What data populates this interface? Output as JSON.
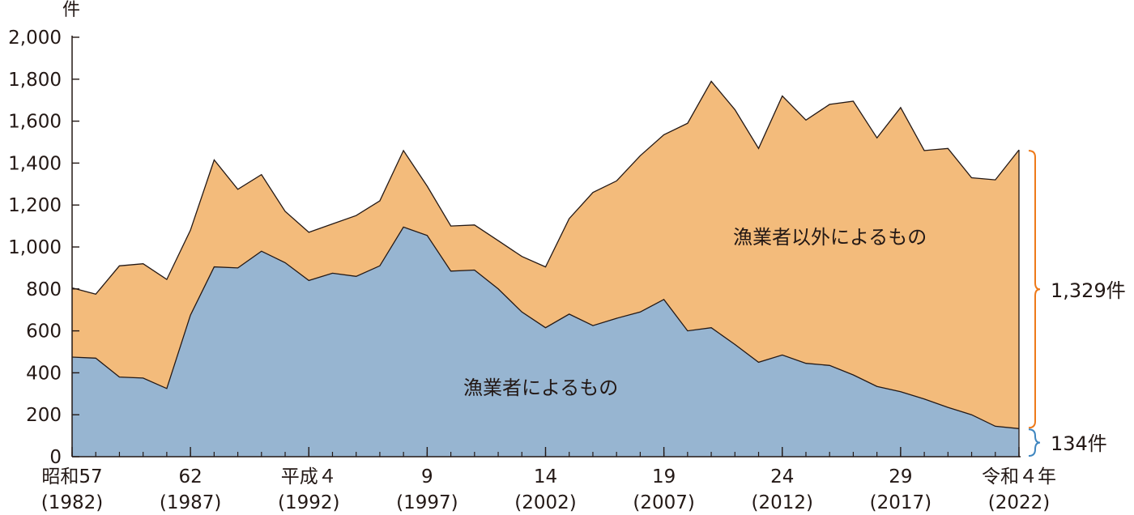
{
  "chart_data": {
    "type": "area",
    "stacked": true,
    "unit_label": "件",
    "ylim": [
      0,
      2000
    ],
    "yticks": [
      "0",
      "200",
      "400",
      "600",
      "800",
      "1,000",
      "1,200",
      "1,400",
      "1,600",
      "1,800",
      "2,000"
    ],
    "x": [
      1982,
      1983,
      1984,
      1985,
      1986,
      1987,
      1988,
      1989,
      1990,
      1991,
      1992,
      1993,
      1994,
      1995,
      1996,
      1997,
      1998,
      1999,
      2000,
      2001,
      2002,
      2003,
      2004,
      2005,
      2006,
      2007,
      2008,
      2009,
      2010,
      2011,
      2012,
      2013,
      2014,
      2015,
      2016,
      2017,
      2018,
      2019,
      2020,
      2021,
      2022
    ],
    "xticks": [
      {
        "x": 1982,
        "line1": "昭和57",
        "line2": "(1982)"
      },
      {
        "x": 1987,
        "line1": "62",
        "line2": "(1987)"
      },
      {
        "x": 1992,
        "line1": "平成４",
        "line2": "(1992)"
      },
      {
        "x": 1997,
        "line1": "9",
        "line2": "(1997)"
      },
      {
        "x": 2002,
        "line1": "14",
        "line2": "(2002)"
      },
      {
        "x": 2007,
        "line1": "19",
        "line2": "(2007)"
      },
      {
        "x": 2012,
        "line1": "24",
        "line2": "(2012)"
      },
      {
        "x": 2017,
        "line1": "29",
        "line2": "(2017)"
      },
      {
        "x": 2022,
        "line1": "令和４年",
        "line2": "(2022)"
      }
    ],
    "series": [
      {
        "name": "漁業者によるもの",
        "color": "#97b5d1",
        "values": [
          475,
          470,
          380,
          375,
          325,
          675,
          905,
          900,
          980,
          925,
          840,
          875,
          860,
          910,
          1095,
          1055,
          885,
          890,
          800,
          690,
          615,
          680,
          625,
          660,
          690,
          750,
          600,
          615,
          535,
          450,
          485,
          445,
          435,
          390,
          335,
          310,
          275,
          235,
          200,
          145,
          134
        ]
      },
      {
        "name": "漁業者以外によるもの",
        "color": "#f3bb7b",
        "values": [
          330,
          305,
          530,
          545,
          520,
          405,
          510,
          375,
          365,
          245,
          230,
          235,
          290,
          310,
          365,
          235,
          215,
          215,
          230,
          265,
          290,
          455,
          635,
          655,
          745,
          785,
          990,
          1175,
          1120,
          1020,
          1235,
          1160,
          1245,
          1305,
          1185,
          1355,
          1185,
          1235,
          1130,
          1175,
          1329
        ]
      }
    ],
    "annotations": {
      "other_total": "1,329件",
      "fisher_total": "134件"
    }
  },
  "colors": {
    "fisher_area": "#97b5d1",
    "other_area": "#f3bb7b",
    "fisher_bracket": "#3f86c0",
    "other_bracket": "#ee7a1a",
    "axis": "#231815"
  }
}
